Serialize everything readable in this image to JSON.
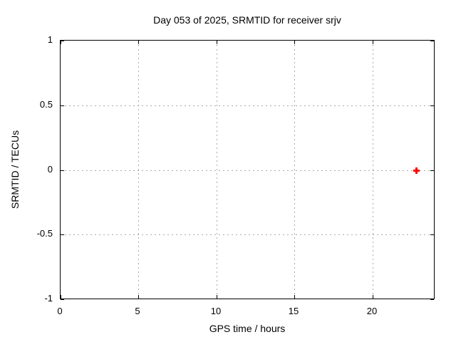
{
  "page": {
    "background": "#ffffff"
  },
  "chart_data": {
    "type": "scatter",
    "title": "Day 053 of 2025, SRMTID for receiver srjv",
    "xlabel": "GPS time / hours",
    "ylabel": "SRMTID / TECUs",
    "xlim": [
      0,
      24
    ],
    "ylim": [
      -1,
      1
    ],
    "xticks": {
      "values": [
        0,
        5,
        10,
        15,
        20
      ],
      "labels": [
        "0",
        "5",
        "10",
        "15",
        "20"
      ]
    },
    "yticks": {
      "values": [
        1,
        0.5,
        0,
        -0.5,
        -1
      ],
      "labels": [
        "1",
        "0.5",
        "0",
        "-0.5",
        "-1"
      ]
    },
    "grid": "dotted interior gridlines",
    "legend": "none",
    "series": [
      {
        "marker": "plus",
        "color": "#ff0000",
        "points": [
          {
            "x": 22.8,
            "y": 0.0
          }
        ]
      }
    ],
    "colors": {
      "frame": "#000000",
      "grid": "#aaaaaa",
      "text": "#000000",
      "background": "#ffffff"
    }
  }
}
